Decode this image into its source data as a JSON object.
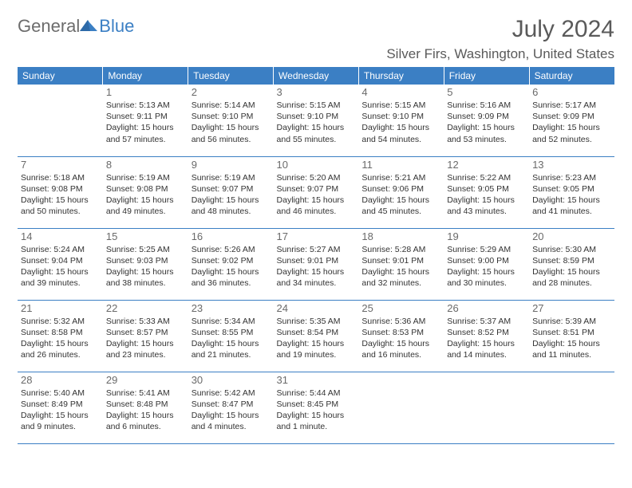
{
  "logo": {
    "general": "General",
    "blue": "Blue"
  },
  "title": "July 2024",
  "location": "Silver Firs, Washington, United States",
  "colors": {
    "header_bg": "#3b7fc4",
    "header_text": "#ffffff",
    "border": "#3b7fc4",
    "text": "#333333",
    "muted": "#6a6a6a",
    "logo_gray": "#6c6c6c",
    "logo_blue": "#3b7fc4",
    "background": "#ffffff"
  },
  "typography": {
    "title_fontsize": 30,
    "location_fontsize": 17,
    "weekday_fontsize": 12,
    "daynum_fontsize": 13,
    "cell_fontsize": 10.5
  },
  "weekdays": [
    "Sunday",
    "Monday",
    "Tuesday",
    "Wednesday",
    "Thursday",
    "Friday",
    "Saturday"
  ],
  "grid": [
    [
      null,
      {
        "n": "1",
        "sr": "Sunrise: 5:13 AM",
        "ss": "Sunset: 9:11 PM",
        "d1": "Daylight: 15 hours",
        "d2": "and 57 minutes."
      },
      {
        "n": "2",
        "sr": "Sunrise: 5:14 AM",
        "ss": "Sunset: 9:10 PM",
        "d1": "Daylight: 15 hours",
        "d2": "and 56 minutes."
      },
      {
        "n": "3",
        "sr": "Sunrise: 5:15 AM",
        "ss": "Sunset: 9:10 PM",
        "d1": "Daylight: 15 hours",
        "d2": "and 55 minutes."
      },
      {
        "n": "4",
        "sr": "Sunrise: 5:15 AM",
        "ss": "Sunset: 9:10 PM",
        "d1": "Daylight: 15 hours",
        "d2": "and 54 minutes."
      },
      {
        "n": "5",
        "sr": "Sunrise: 5:16 AM",
        "ss": "Sunset: 9:09 PM",
        "d1": "Daylight: 15 hours",
        "d2": "and 53 minutes."
      },
      {
        "n": "6",
        "sr": "Sunrise: 5:17 AM",
        "ss": "Sunset: 9:09 PM",
        "d1": "Daylight: 15 hours",
        "d2": "and 52 minutes."
      }
    ],
    [
      {
        "n": "7",
        "sr": "Sunrise: 5:18 AM",
        "ss": "Sunset: 9:08 PM",
        "d1": "Daylight: 15 hours",
        "d2": "and 50 minutes."
      },
      {
        "n": "8",
        "sr": "Sunrise: 5:19 AM",
        "ss": "Sunset: 9:08 PM",
        "d1": "Daylight: 15 hours",
        "d2": "and 49 minutes."
      },
      {
        "n": "9",
        "sr": "Sunrise: 5:19 AM",
        "ss": "Sunset: 9:07 PM",
        "d1": "Daylight: 15 hours",
        "d2": "and 48 minutes."
      },
      {
        "n": "10",
        "sr": "Sunrise: 5:20 AM",
        "ss": "Sunset: 9:07 PM",
        "d1": "Daylight: 15 hours",
        "d2": "and 46 minutes."
      },
      {
        "n": "11",
        "sr": "Sunrise: 5:21 AM",
        "ss": "Sunset: 9:06 PM",
        "d1": "Daylight: 15 hours",
        "d2": "and 45 minutes."
      },
      {
        "n": "12",
        "sr": "Sunrise: 5:22 AM",
        "ss": "Sunset: 9:05 PM",
        "d1": "Daylight: 15 hours",
        "d2": "and 43 minutes."
      },
      {
        "n": "13",
        "sr": "Sunrise: 5:23 AM",
        "ss": "Sunset: 9:05 PM",
        "d1": "Daylight: 15 hours",
        "d2": "and 41 minutes."
      }
    ],
    [
      {
        "n": "14",
        "sr": "Sunrise: 5:24 AM",
        "ss": "Sunset: 9:04 PM",
        "d1": "Daylight: 15 hours",
        "d2": "and 39 minutes."
      },
      {
        "n": "15",
        "sr": "Sunrise: 5:25 AM",
        "ss": "Sunset: 9:03 PM",
        "d1": "Daylight: 15 hours",
        "d2": "and 38 minutes."
      },
      {
        "n": "16",
        "sr": "Sunrise: 5:26 AM",
        "ss": "Sunset: 9:02 PM",
        "d1": "Daylight: 15 hours",
        "d2": "and 36 minutes."
      },
      {
        "n": "17",
        "sr": "Sunrise: 5:27 AM",
        "ss": "Sunset: 9:01 PM",
        "d1": "Daylight: 15 hours",
        "d2": "and 34 minutes."
      },
      {
        "n": "18",
        "sr": "Sunrise: 5:28 AM",
        "ss": "Sunset: 9:01 PM",
        "d1": "Daylight: 15 hours",
        "d2": "and 32 minutes."
      },
      {
        "n": "19",
        "sr": "Sunrise: 5:29 AM",
        "ss": "Sunset: 9:00 PM",
        "d1": "Daylight: 15 hours",
        "d2": "and 30 minutes."
      },
      {
        "n": "20",
        "sr": "Sunrise: 5:30 AM",
        "ss": "Sunset: 8:59 PM",
        "d1": "Daylight: 15 hours",
        "d2": "and 28 minutes."
      }
    ],
    [
      {
        "n": "21",
        "sr": "Sunrise: 5:32 AM",
        "ss": "Sunset: 8:58 PM",
        "d1": "Daylight: 15 hours",
        "d2": "and 26 minutes."
      },
      {
        "n": "22",
        "sr": "Sunrise: 5:33 AM",
        "ss": "Sunset: 8:57 PM",
        "d1": "Daylight: 15 hours",
        "d2": "and 23 minutes."
      },
      {
        "n": "23",
        "sr": "Sunrise: 5:34 AM",
        "ss": "Sunset: 8:55 PM",
        "d1": "Daylight: 15 hours",
        "d2": "and 21 minutes."
      },
      {
        "n": "24",
        "sr": "Sunrise: 5:35 AM",
        "ss": "Sunset: 8:54 PM",
        "d1": "Daylight: 15 hours",
        "d2": "and 19 minutes."
      },
      {
        "n": "25",
        "sr": "Sunrise: 5:36 AM",
        "ss": "Sunset: 8:53 PM",
        "d1": "Daylight: 15 hours",
        "d2": "and 16 minutes."
      },
      {
        "n": "26",
        "sr": "Sunrise: 5:37 AM",
        "ss": "Sunset: 8:52 PM",
        "d1": "Daylight: 15 hours",
        "d2": "and 14 minutes."
      },
      {
        "n": "27",
        "sr": "Sunrise: 5:39 AM",
        "ss": "Sunset: 8:51 PM",
        "d1": "Daylight: 15 hours",
        "d2": "and 11 minutes."
      }
    ],
    [
      {
        "n": "28",
        "sr": "Sunrise: 5:40 AM",
        "ss": "Sunset: 8:49 PM",
        "d1": "Daylight: 15 hours",
        "d2": "and 9 minutes."
      },
      {
        "n": "29",
        "sr": "Sunrise: 5:41 AM",
        "ss": "Sunset: 8:48 PM",
        "d1": "Daylight: 15 hours",
        "d2": "and 6 minutes."
      },
      {
        "n": "30",
        "sr": "Sunrise: 5:42 AM",
        "ss": "Sunset: 8:47 PM",
        "d1": "Daylight: 15 hours",
        "d2": "and 4 minutes."
      },
      {
        "n": "31",
        "sr": "Sunrise: 5:44 AM",
        "ss": "Sunset: 8:45 PM",
        "d1": "Daylight: 15 hours",
        "d2": "and 1 minute."
      },
      null,
      null,
      null
    ]
  ]
}
